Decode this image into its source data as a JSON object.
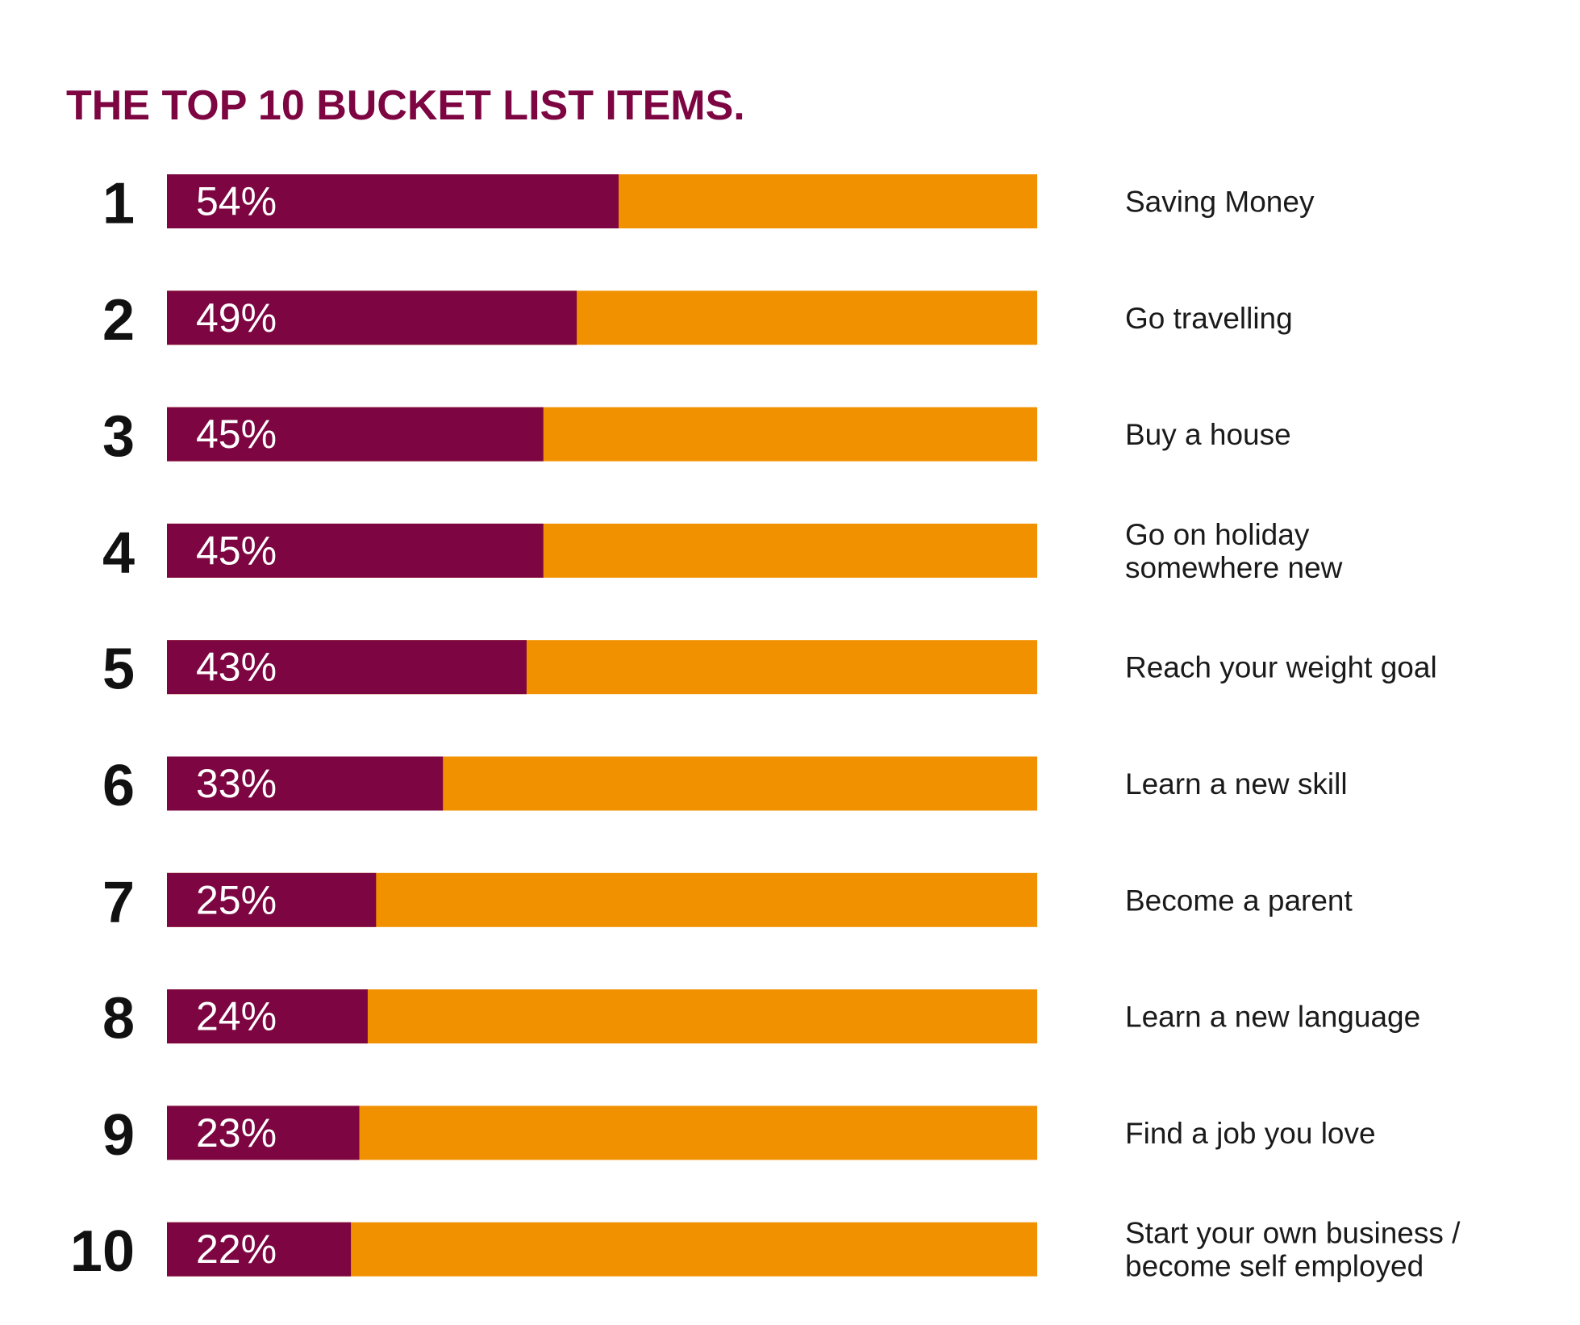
{
  "chart_data": {
    "type": "bar",
    "title": "THE TOP 10 BUCKET LIST ITEMS.",
    "orientation": "horizontal",
    "stacked_background": true,
    "xlim": [
      0,
      100
    ],
    "grid": false,
    "legend": "none",
    "colors": {
      "value_bar": "#7d0541",
      "remainder_bar": "#f29100",
      "title": "#7d0541",
      "rank": "#111111",
      "value_label": "#ffffff",
      "item_label": "#1a1a1a"
    },
    "items": [
      {
        "rank": "1",
        "value": 54,
        "value_label": "54%",
        "label_lines": [
          "Saving Money"
        ]
      },
      {
        "rank": "2",
        "value": 49,
        "value_label": "49%",
        "label_lines": [
          "Go travelling"
        ]
      },
      {
        "rank": "3",
        "value": 45,
        "value_label": "45%",
        "label_lines": [
          "Buy a house"
        ]
      },
      {
        "rank": "4",
        "value": 45,
        "value_label": "45%",
        "label_lines": [
          "Go on holiday",
          "somewhere new"
        ]
      },
      {
        "rank": "5",
        "value": 43,
        "value_label": "43%",
        "label_lines": [
          "Reach your weight goal"
        ]
      },
      {
        "rank": "6",
        "value": 33,
        "value_label": "33%",
        "label_lines": [
          "Learn a new skill"
        ]
      },
      {
        "rank": "7",
        "value": 25,
        "value_label": "25%",
        "label_lines": [
          "Become a parent"
        ]
      },
      {
        "rank": "8",
        "value": 24,
        "value_label": "24%",
        "label_lines": [
          "Learn a new language"
        ]
      },
      {
        "rank": "9",
        "value": 23,
        "value_label": "23%",
        "label_lines": [
          "Find a job you love"
        ]
      },
      {
        "rank": "10",
        "value": 22,
        "value_label": "22%",
        "label_lines": [
          "Start your own business /",
          "become self employed"
        ]
      }
    ]
  }
}
